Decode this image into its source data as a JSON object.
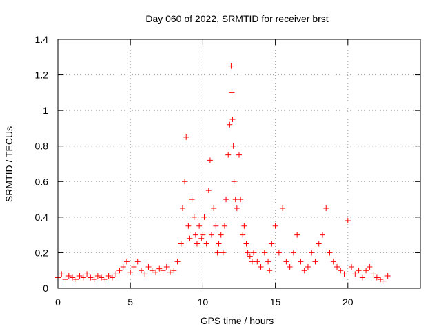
{
  "chart_data": {
    "type": "scatter",
    "title": "Day 060 of 2022, SRMTID for receiver brst",
    "xlabel": "GPS time / hours",
    "ylabel": "SRMTID / TECUs",
    "xlim": [
      0,
      25
    ],
    "ylim": [
      0,
      1.4
    ],
    "xticks": [
      0,
      5,
      10,
      15,
      20
    ],
    "xtick_labels": [
      "0",
      "5",
      "10",
      "15",
      "20"
    ],
    "yticks": [
      0,
      0.2,
      0.4,
      0.6,
      0.8,
      1,
      1.2,
      1.4
    ],
    "ytick_labels": [
      "0",
      "0.2",
      "0.4",
      "0.6",
      "0.8",
      "1",
      "1.2",
      "1.4"
    ],
    "grid": true,
    "marker": "+",
    "color": "#ff0000",
    "series": [
      {
        "name": "SRMTID",
        "x": [
          0.0,
          0.25,
          0.5,
          0.75,
          1.0,
          1.25,
          1.5,
          1.75,
          2.0,
          2.25,
          2.5,
          2.75,
          3.0,
          3.25,
          3.5,
          3.75,
          4.0,
          4.25,
          4.5,
          4.75,
          5.0,
          5.25,
          5.5,
          5.75,
          6.0,
          6.25,
          6.5,
          6.75,
          7.0,
          7.25,
          7.5,
          7.75,
          8.0,
          8.25,
          8.5,
          8.6,
          8.75,
          8.85,
          9.0,
          9.1,
          9.25,
          9.4,
          9.5,
          9.6,
          9.75,
          9.9,
          10.0,
          10.1,
          10.25,
          10.4,
          10.5,
          10.6,
          10.75,
          10.9,
          11.0,
          11.1,
          11.25,
          11.4,
          11.5,
          11.6,
          11.75,
          11.85,
          11.95,
          12.0,
          12.05,
          12.1,
          12.15,
          12.25,
          12.35,
          12.5,
          12.6,
          12.75,
          12.85,
          13.0,
          13.1,
          13.25,
          13.4,
          13.5,
          13.75,
          14.0,
          14.25,
          14.5,
          14.6,
          14.75,
          15.0,
          15.25,
          15.5,
          15.75,
          16.0,
          16.25,
          16.5,
          16.75,
          17.0,
          17.25,
          17.5,
          17.75,
          18.0,
          18.25,
          18.5,
          18.75,
          19.0,
          19.25,
          19.5,
          19.75,
          20.0,
          20.25,
          20.5,
          20.75,
          21.0,
          21.25,
          21.5,
          21.75,
          22.0,
          22.25,
          22.5,
          22.75
        ],
        "y": [
          0.06,
          0.08,
          0.05,
          0.07,
          0.06,
          0.05,
          0.07,
          0.06,
          0.08,
          0.06,
          0.05,
          0.07,
          0.06,
          0.05,
          0.07,
          0.06,
          0.08,
          0.1,
          0.12,
          0.15,
          0.09,
          0.12,
          0.15,
          0.1,
          0.08,
          0.12,
          0.1,
          0.09,
          0.11,
          0.1,
          0.12,
          0.09,
          0.1,
          0.15,
          0.25,
          0.45,
          0.6,
          0.85,
          0.35,
          0.28,
          0.5,
          0.4,
          0.3,
          0.25,
          0.35,
          0.28,
          0.3,
          0.4,
          0.25,
          0.55,
          0.72,
          0.3,
          0.45,
          0.35,
          0.2,
          0.25,
          0.3,
          0.2,
          0.35,
          0.5,
          0.75,
          0.92,
          1.25,
          1.1,
          0.95,
          0.8,
          0.6,
          0.5,
          0.45,
          0.75,
          0.5,
          0.3,
          0.35,
          0.25,
          0.2,
          0.18,
          0.15,
          0.2,
          0.15,
          0.12,
          0.2,
          0.15,
          0.1,
          0.25,
          0.35,
          0.2,
          0.45,
          0.15,
          0.12,
          0.2,
          0.3,
          0.15,
          0.1,
          0.12,
          0.2,
          0.15,
          0.25,
          0.3,
          0.45,
          0.2,
          0.15,
          0.12,
          0.1,
          0.08,
          0.38,
          0.12,
          0.08,
          0.1,
          0.06,
          0.1,
          0.12,
          0.08,
          0.06,
          0.05,
          0.04,
          0.07
        ]
      }
    ]
  }
}
